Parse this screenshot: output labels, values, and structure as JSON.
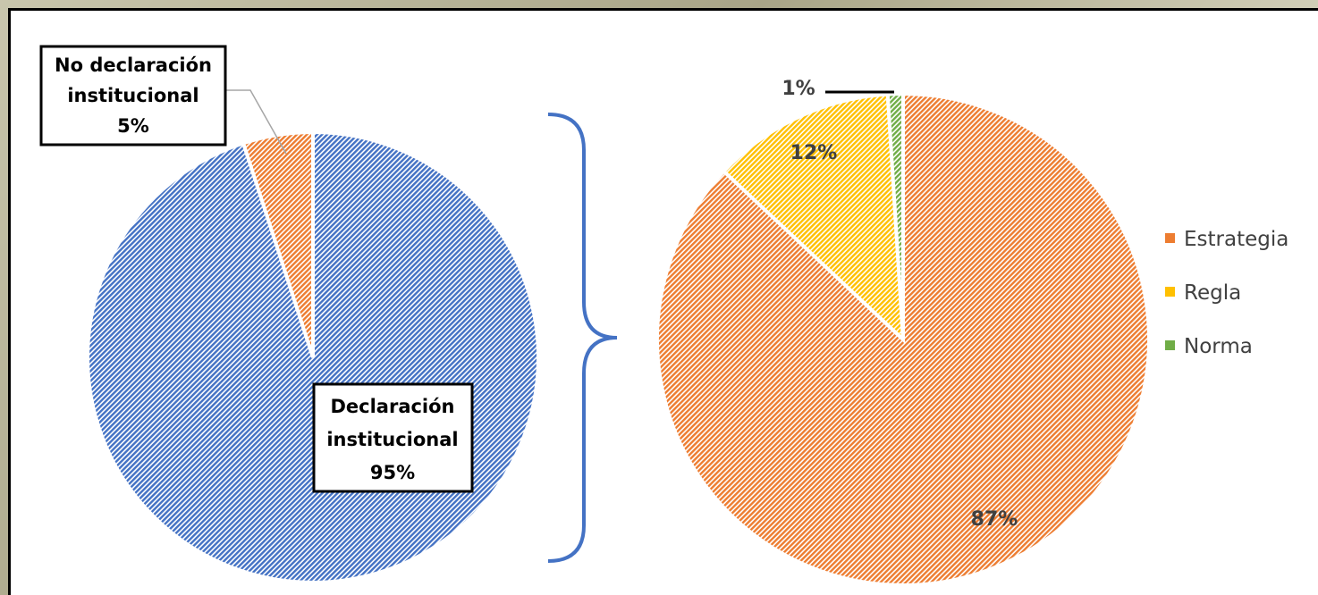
{
  "chart_data": [
    {
      "type": "pie",
      "slices": [
        {
          "label_lines": [
            "Declaración",
            "institucional"
          ],
          "value": 95,
          "value_label": "95%",
          "color": "#4472c4"
        },
        {
          "label_lines": [
            "No declaración",
            "institucional"
          ],
          "value": 5,
          "value_label": "5%",
          "color": "#ed7d31"
        }
      ]
    },
    {
      "type": "pie",
      "slices": [
        {
          "label": "Estrategia",
          "value": 87,
          "value_label": "87%",
          "color": "#ed7d31"
        },
        {
          "label": "Regla",
          "value": 12,
          "value_label": "12%",
          "color": "#ffc000"
        },
        {
          "label": "Norma",
          "value": 1,
          "value_label": "1%",
          "color": "#70ad47"
        }
      ],
      "legend_position": "right"
    }
  ]
}
